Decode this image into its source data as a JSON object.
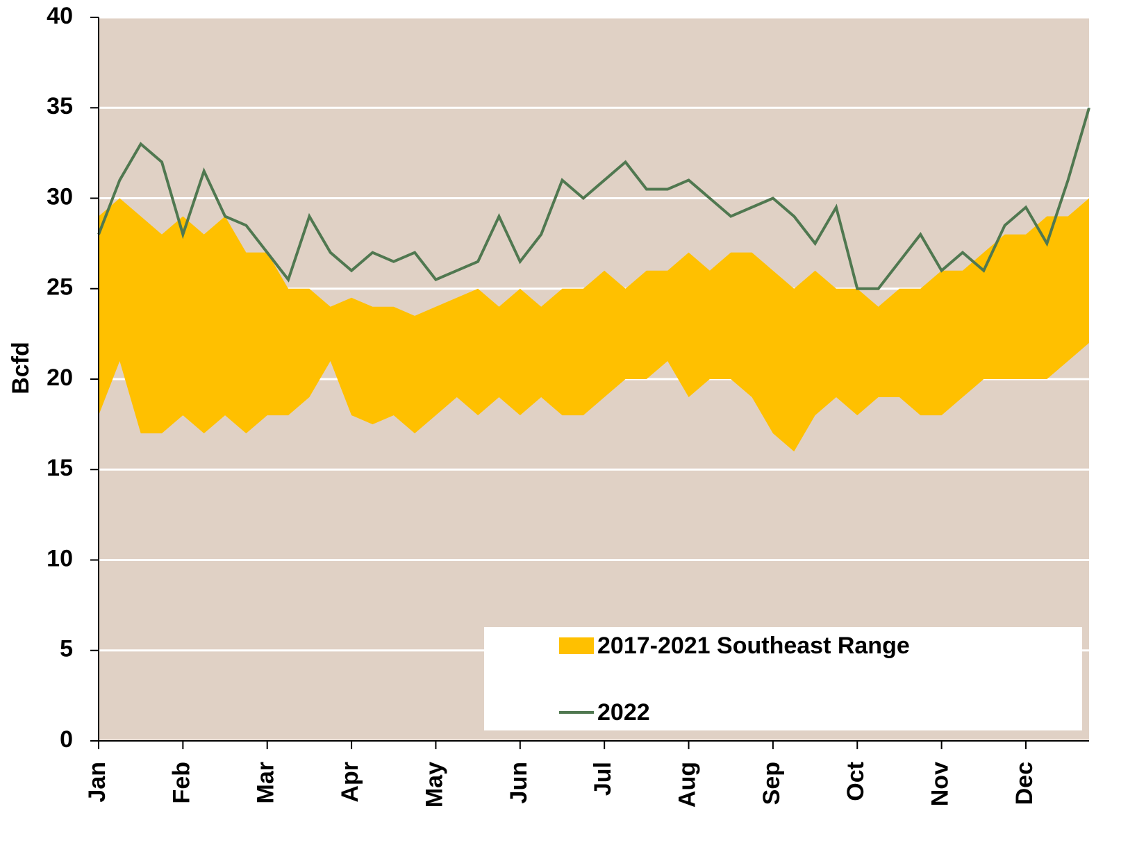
{
  "chart_data": {
    "type": "range_line",
    "y_label": "Bcfd",
    "categories": [
      "Jan",
      null,
      null,
      null,
      "Feb",
      null,
      null,
      null,
      "Mar",
      null,
      null,
      null,
      "Apr",
      null,
      null,
      null,
      "May",
      null,
      null,
      null,
      "Jun",
      null,
      null,
      null,
      "Jul",
      null,
      null,
      null,
      "Aug",
      null,
      null,
      null,
      "Sep",
      null,
      null,
      null,
      "Oct",
      null,
      null,
      null,
      "Nov",
      null,
      null,
      null,
      "Dec",
      null,
      null,
      null
    ],
    "range": {
      "name": "2017-2021 Southeast Range",
      "color": "#ffc000",
      "high": [
        29,
        30,
        29,
        28,
        29,
        28,
        29,
        27,
        27,
        25,
        25,
        24,
        24.5,
        24,
        24,
        23.5,
        24,
        24.5,
        25,
        24,
        25,
        24,
        25,
        25,
        26,
        25,
        26,
        26,
        27,
        26,
        27,
        27,
        26,
        25,
        26,
        25,
        25,
        24,
        25,
        25,
        26,
        26,
        27,
        28,
        28,
        29,
        29,
        30
      ],
      "low": [
        18,
        21,
        17,
        17,
        18,
        17,
        18,
        17,
        18,
        18,
        19,
        21,
        18,
        17.5,
        18,
        17,
        18,
        19,
        18,
        19,
        18,
        19,
        18,
        18,
        19,
        20,
        20,
        21,
        19,
        20,
        20,
        19,
        17,
        16,
        18,
        19,
        18,
        19,
        19,
        18,
        18,
        19,
        20,
        20,
        20,
        20,
        21,
        22
      ]
    },
    "series": [
      {
        "name": "2022",
        "color": "#507850",
        "values": [
          28,
          31,
          33,
          32,
          28,
          31.5,
          29,
          28.5,
          27,
          25.5,
          29,
          27,
          26,
          27,
          26.5,
          27,
          25.5,
          26,
          26.5,
          29,
          26.5,
          28,
          31,
          30,
          31,
          32,
          30.5,
          30.5,
          31,
          30,
          29,
          29.5,
          30,
          29,
          27.5,
          29.5,
          25,
          25,
          26.5,
          28,
          26,
          27,
          26,
          28.5,
          29.5,
          27.5,
          31,
          35
        ]
      }
    ],
    "ylim": [
      0,
      40
    ],
    "yticks": [
      0,
      5,
      10,
      15,
      20,
      25,
      30,
      35,
      40
    ],
    "grid": true,
    "legend": "bottom-right",
    "background": "#e0d1c5"
  }
}
